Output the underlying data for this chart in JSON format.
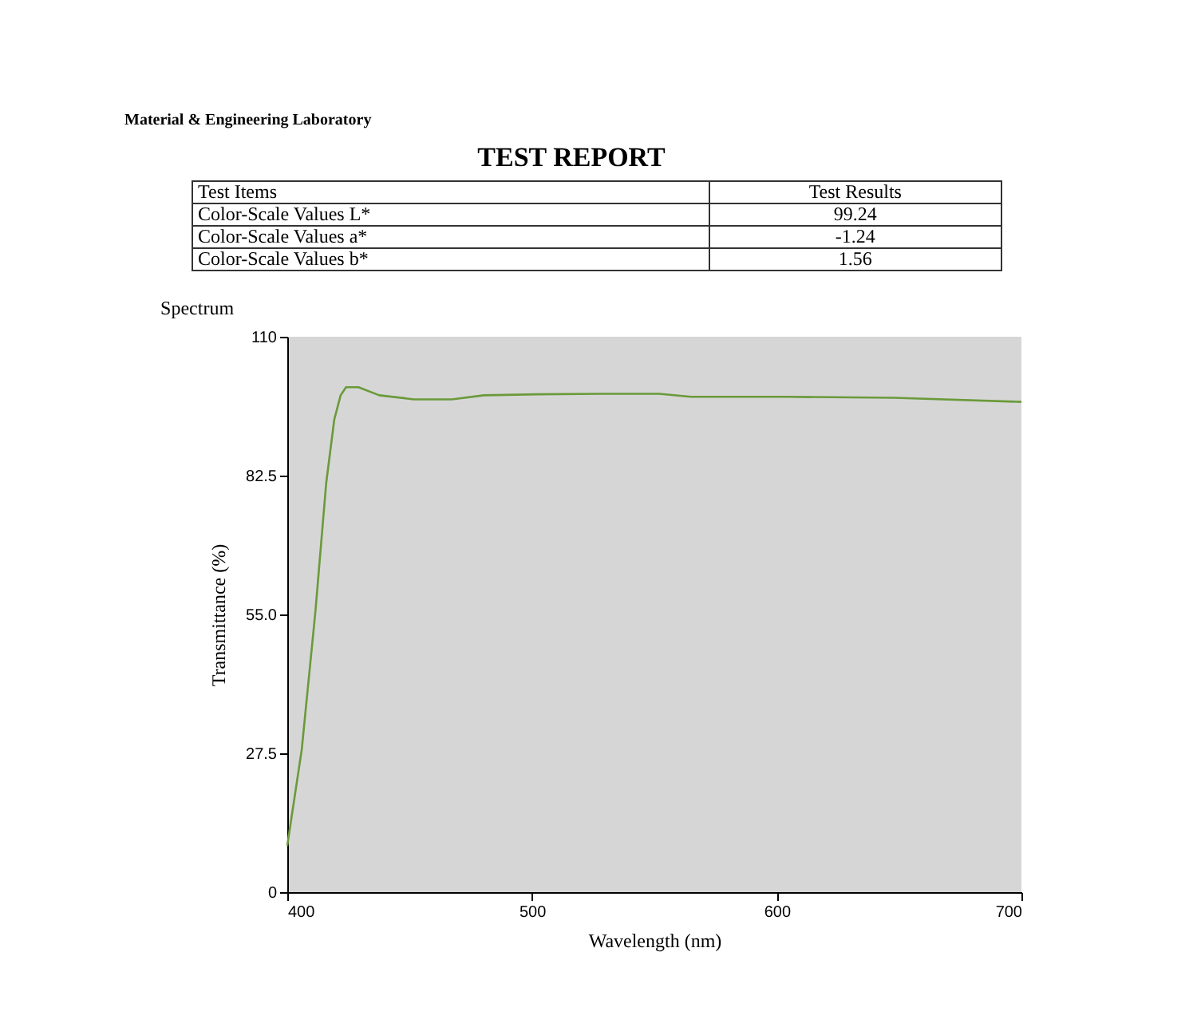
{
  "chart_data": [
    {
      "type": "other",
      "title": "TEST REPORT",
      "xlabel": "Test Items",
      "ylabel": "Test Results",
      "categories": [
        "Color-Scale Values L*",
        "Color-Scale Values a*",
        "Color-Scale Values b*"
      ],
      "values": [
        99.24,
        -1.24,
        1.56
      ],
      "data_labels": true,
      "annotations": [
        "Material & Engineering Laboratory"
      ]
    },
    {
      "type": "line",
      "title": "Spectrum",
      "xlabel": "Wavelength (nm)",
      "ylabel": "Transmittance (%)",
      "x": [
        400,
        405.9,
        411.5,
        415.9,
        419.2,
        421.8,
        424,
        429.1,
        437.6,
        451.8,
        467.2,
        480.3,
        502,
        528,
        552,
        565,
        604.6,
        648,
        700
      ],
      "series": [
        {
          "color": "#6a9a3a",
          "values": [
            9.2,
            28.2,
            55.6,
            81.0,
            93.6,
            98.4,
            100.0,
            100.0,
            98.4,
            97.6,
            97.6,
            98.4,
            98.6,
            98.7,
            98.7,
            98.1,
            98.1,
            97.9,
            97.1
          ]
        }
      ],
      "xlim": [
        400,
        700
      ],
      "xticks": [
        400,
        500,
        600,
        700
      ],
      "ylim": [
        0,
        110
      ],
      "yticks": [
        0,
        27.5,
        {
          "value": 55,
          "label": "55.0"
        },
        82.5,
        110
      ],
      "grid": false,
      "legend": false,
      "marker": "none",
      "line_style": "solid"
    }
  ]
}
